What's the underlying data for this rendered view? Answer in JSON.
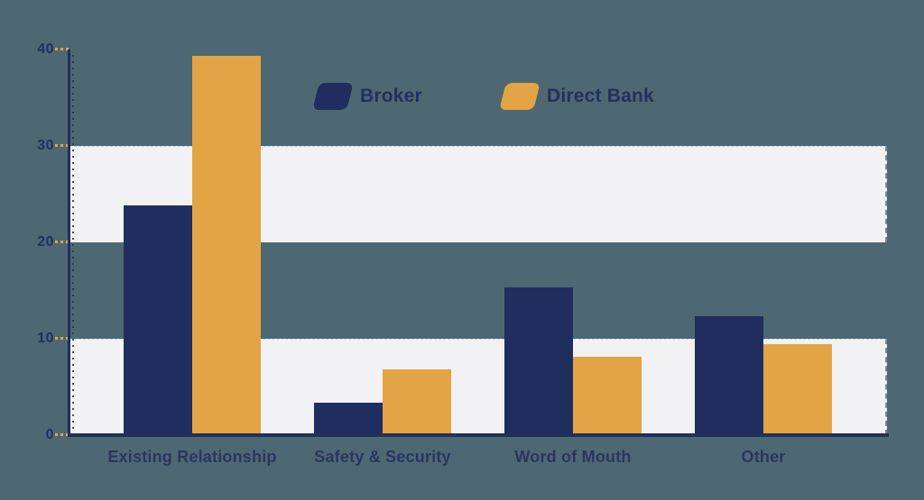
{
  "chart_data": {
    "type": "bar",
    "title": "",
    "xlabel": "",
    "ylabel": "",
    "categories": [
      "Existing Relationship",
      "Safety & Security",
      "Word of Mouth",
      "Other"
    ],
    "series": [
      {
        "name": "Broker",
        "color": "#1f2e5e",
        "values": [
          23.8,
          3.4,
          15.3,
          12.3
        ]
      },
      {
        "name": "Direct Bank",
        "color": "#e3a445",
        "values": [
          39.3,
          6.8,
          8.1,
          9.4
        ]
      }
    ],
    "ylim": [
      0,
      40
    ],
    "y_ticks": [
      40,
      30,
      20,
      10,
      0
    ],
    "grid_bands": [
      [
        20,
        30
      ],
      [
        0,
        10
      ]
    ],
    "grid_band_color": "#f2f2f4",
    "legend_position": "top-center",
    "background_color": "#4d6872",
    "axis_color": "#22305c",
    "tick_mark_color": "#e3a445",
    "label_color": "#2b3560"
  }
}
